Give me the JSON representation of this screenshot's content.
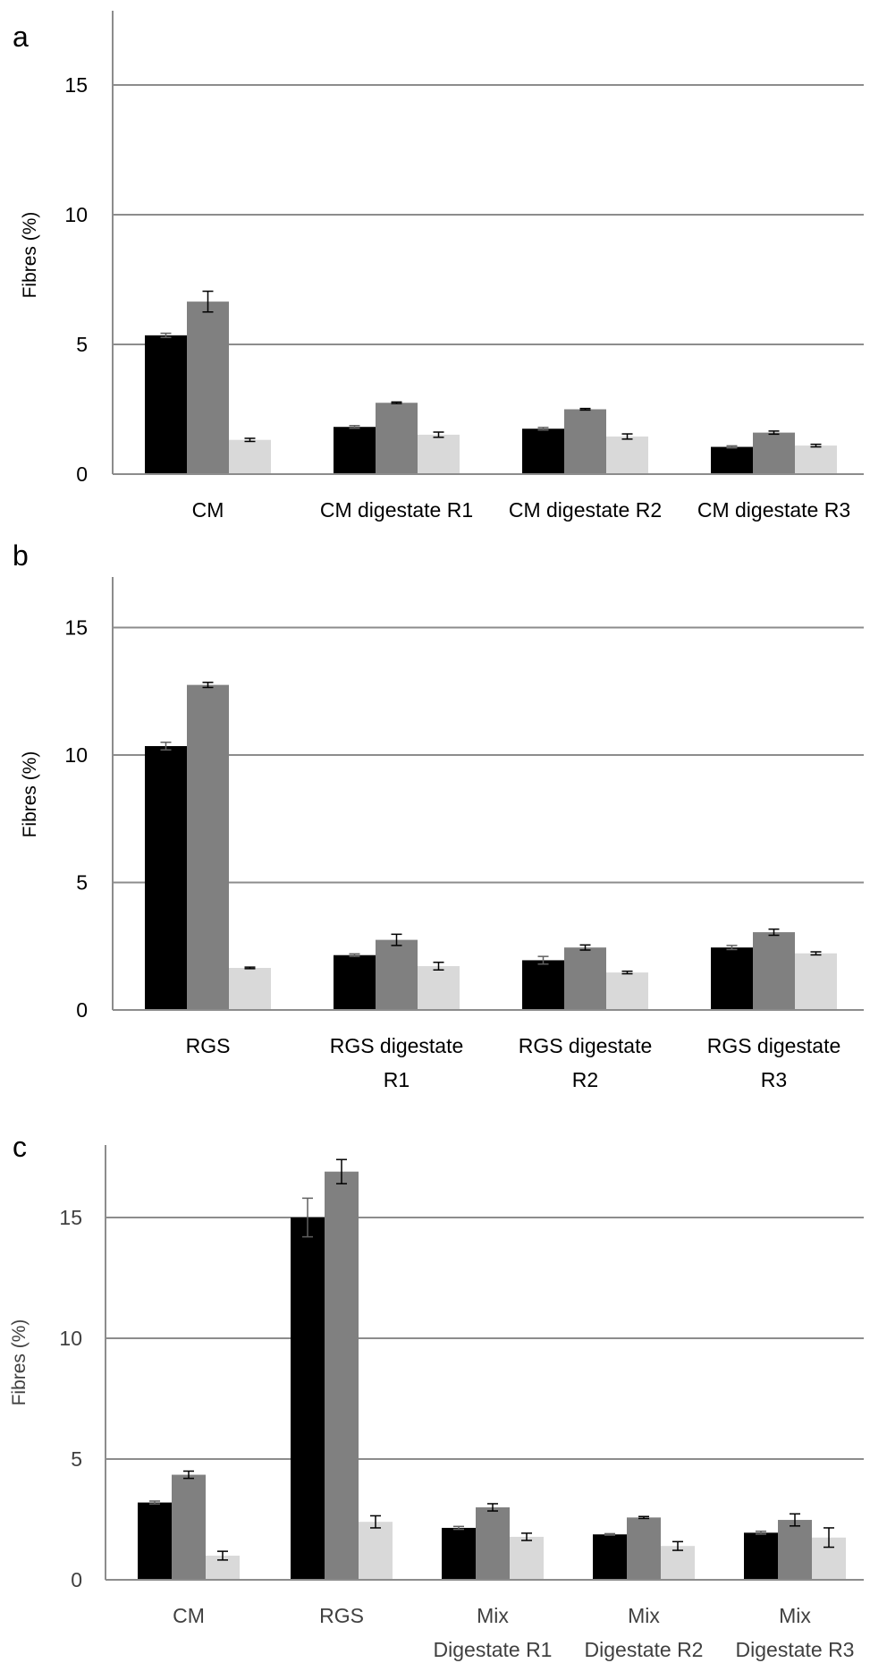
{
  "figure": {
    "panels": [
      "a",
      "b",
      "c"
    ]
  },
  "colors": {
    "series": [
      "#000000",
      "#808080",
      "#d9d9d9"
    ],
    "grid": "#8c8c8c",
    "axis": "#8c8c8c",
    "text": "#000000",
    "text_c": "#404040",
    "error_bar": "#000000"
  },
  "chart_data": [
    {
      "panel": "a",
      "type": "bar",
      "ylabel": "Fibres  (%)",
      "ylim": [
        0,
        18
      ],
      "yticks": [
        0,
        5,
        10,
        15
      ],
      "grid": true,
      "legend": "none",
      "categories": [
        [
          "CM"
        ],
        [
          "CM digestate R1"
        ],
        [
          "CM digestate R2"
        ],
        [
          "CM digestate R3"
        ]
      ],
      "series": [
        {
          "values": [
            5.35,
            1.82,
            1.75,
            1.05
          ],
          "errors": [
            0.08,
            0.05,
            0.05,
            0.04
          ]
        },
        {
          "values": [
            6.65,
            2.75,
            2.5,
            1.6
          ],
          "errors": [
            0.4,
            0.03,
            0.03,
            0.06
          ]
        },
        {
          "values": [
            1.32,
            1.52,
            1.45,
            1.1
          ],
          "errors": [
            0.06,
            0.1,
            0.1,
            0.05
          ]
        }
      ]
    },
    {
      "panel": "b",
      "type": "bar",
      "ylabel": "Fibres  (%)",
      "ylim": [
        0,
        17
      ],
      "yticks": [
        0,
        5,
        10,
        15
      ],
      "grid": true,
      "legend": "none",
      "categories": [
        [
          "RGS"
        ],
        [
          "RGS digestate",
          "R1"
        ],
        [
          "RGS digestate",
          "R2"
        ],
        [
          "RGS digestate",
          "R3"
        ]
      ],
      "series": [
        {
          "values": [
            10.35,
            2.15,
            1.95,
            2.45
          ],
          "errors": [
            0.15,
            0.05,
            0.15,
            0.08
          ]
        },
        {
          "values": [
            12.75,
            2.75,
            2.45,
            3.05
          ],
          "errors": [
            0.1,
            0.22,
            0.1,
            0.12
          ]
        },
        {
          "values": [
            1.65,
            1.72,
            1.47,
            2.22
          ],
          "errors": [
            0.03,
            0.15,
            0.05,
            0.06
          ]
        }
      ]
    },
    {
      "panel": "c",
      "type": "bar",
      "ylabel": "Fibres (%)",
      "ylim": [
        0,
        18
      ],
      "yticks": [
        0,
        5,
        10,
        15
      ],
      "grid": true,
      "legend": "none",
      "categories": [
        [
          "CM"
        ],
        [
          "RGS"
        ],
        [
          "Mix",
          "Digestate R1"
        ],
        [
          "Mix",
          "Digestate R2"
        ],
        [
          "Mix",
          "Digestate R3"
        ]
      ],
      "series": [
        {
          "values": [
            3.2,
            15.0,
            2.15,
            1.88,
            1.95
          ],
          "errors": [
            0.06,
            0.8,
            0.06,
            0.03,
            0.06
          ]
        },
        {
          "values": [
            4.35,
            16.9,
            3.0,
            2.58,
            2.48
          ],
          "errors": [
            0.15,
            0.5,
            0.15,
            0.04,
            0.25
          ]
        },
        {
          "values": [
            1.0,
            2.4,
            1.78,
            1.4,
            1.75
          ],
          "errors": [
            0.18,
            0.25,
            0.15,
            0.18,
            0.4
          ]
        }
      ]
    }
  ]
}
